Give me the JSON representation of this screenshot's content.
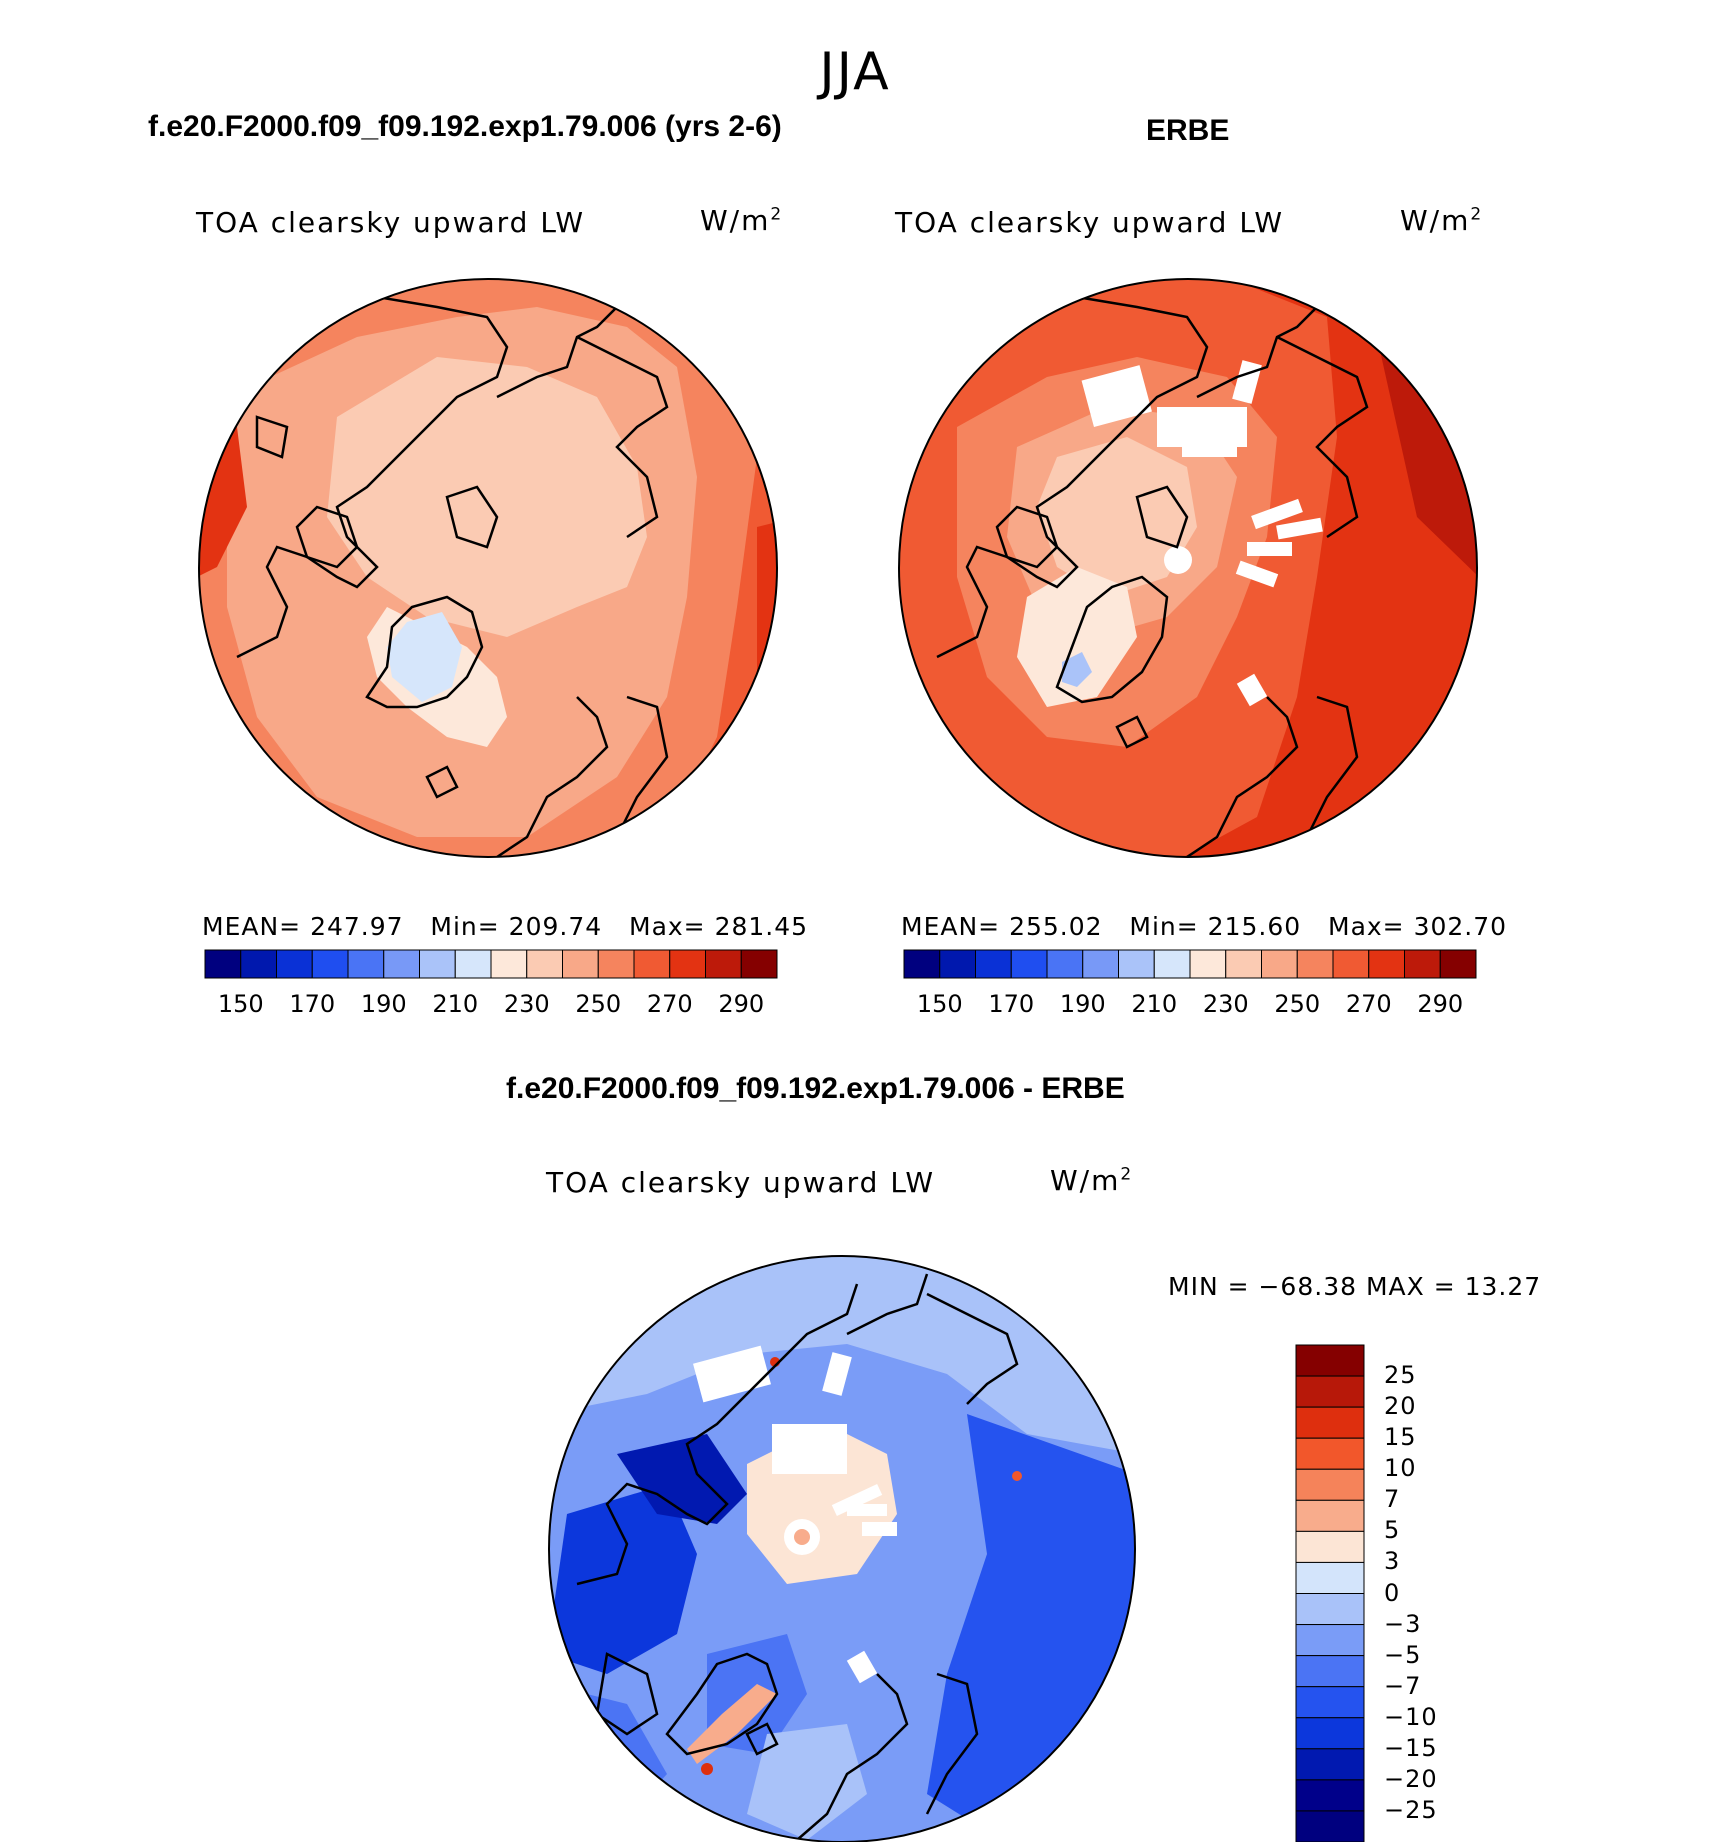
{
  "figure": {
    "title": "JJA"
  },
  "left_panel": {
    "case_title": "f.e20.F2000.f09_f09.192.exp1.79.006 (yrs 2-6)",
    "variable": "TOA clearsky upward LW",
    "units": "W/m",
    "units_sup": "2",
    "stats": {
      "mean_label": "MEAN=",
      "mean": "247.97",
      "min_label": "Min=",
      "min": "209.74",
      "max_label": "Max=",
      "max": "281.45"
    }
  },
  "right_panel": {
    "case_title": "ERBE",
    "variable": "TOA clearsky upward LW",
    "units": "W/m",
    "units_sup": "2",
    "stats": {
      "mean_label": "MEAN=",
      "mean": "255.02",
      "min_label": "Min=",
      "min": "215.60",
      "max_label": "Max=",
      "max": "302.70"
    }
  },
  "diff_panel": {
    "case_title": "f.e20.F2000.f09_f09.192.exp1.79.006 - ERBE",
    "variable": "TOA clearsky upward LW",
    "units": "W/m",
    "units_sup": "2",
    "minmax": "MIN = −68.38 MAX =   13.27"
  },
  "abs_colorbar": {
    "colors": [
      "#00007f",
      "#0018ae",
      "#0a31d6",
      "#1f4ef0",
      "#4a74f5",
      "#7899f7",
      "#aac3f9",
      "#d6e6fb",
      "#fde8da",
      "#fbcbb3",
      "#f8a888",
      "#f5845e",
      "#f05a33",
      "#e33312",
      "#bd1a0a",
      "#850000"
    ],
    "tick_labels": [
      "150",
      "170",
      "190",
      "210",
      "230",
      "250",
      "270",
      "290"
    ]
  },
  "diff_colorbar": {
    "colors": [
      "#850000",
      "#b71809",
      "#de2f0e",
      "#f2572b",
      "#f5835a",
      "#f8ac8c",
      "#fce5d5",
      "#d3e4fb",
      "#a9c2f9",
      "#7a9cf7",
      "#4b74f4",
      "#2553ef",
      "#0c37dc",
      "#0119b0",
      "#00008a"
    ],
    "tick_labels": [
      "25",
      "20",
      "15",
      "10",
      "7",
      "5",
      "3",
      "0",
      "−3",
      "−5",
      "−7",
      "−10",
      "−15",
      "−20",
      "−25"
    ]
  }
}
